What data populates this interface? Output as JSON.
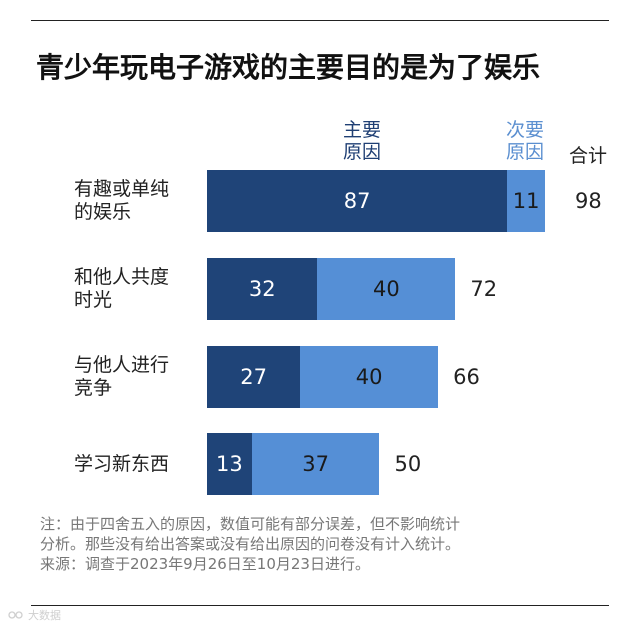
{
  "title": "青少年玩电子游戏的主要目的是为了娱乐",
  "legend": {
    "primary": [
      "主要",
      "原因"
    ],
    "secondary": [
      "次要",
      "原因"
    ],
    "total": "合计"
  },
  "colors": {
    "primary": "#1f4478",
    "secondary": "#558fd6",
    "primary_text": "#1f3f74",
    "secondary_text": "#5b8fd0"
  },
  "chart_data": {
    "type": "bar",
    "orientation": "horizontal",
    "stacked": true,
    "categories": [
      [
        "有趣或单纯",
        "的娱乐"
      ],
      [
        "和他人共度",
        "时光"
      ],
      [
        "与他人进行",
        "竞争"
      ],
      [
        "学习新东西"
      ]
    ],
    "series": [
      {
        "name": "主要原因",
        "values": [
          87,
          32,
          27,
          13
        ]
      },
      {
        "name": "次要原因",
        "values": [
          11,
          40,
          40,
          37
        ]
      }
    ],
    "totals": [
      98,
      72,
      66,
      50
    ],
    "xlim": [
      0,
      100
    ]
  },
  "notes": [
    "注：由于四舍五入的原因，数值可能有部分误差，但不影响统计",
    "分析。那些没有给出答案或没有给出原因的问卷没有计入统计。",
    "来源：调查于2023年9月26日至10月23日进行。"
  ],
  "watermark_icon": "link-logo-icon",
  "watermark": "大数据"
}
